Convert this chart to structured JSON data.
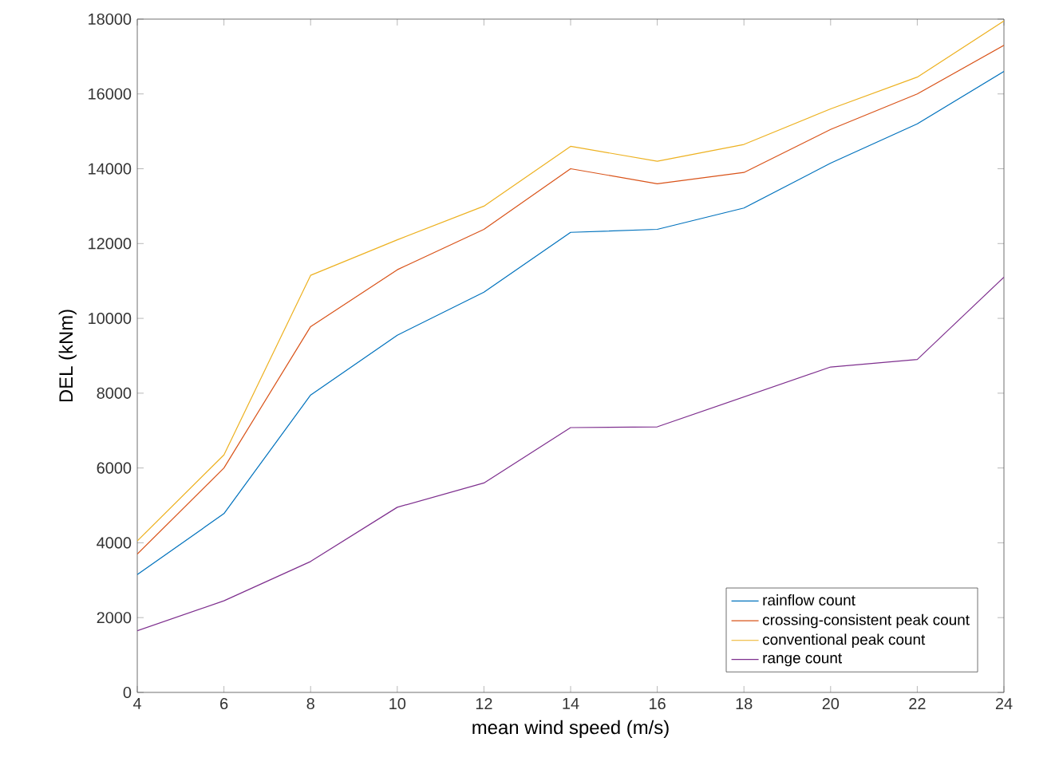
{
  "chart_data": {
    "type": "line",
    "xlabel": "mean wind speed (m/s)",
    "ylabel": "DEL (kNm)",
    "x": [
      4,
      6,
      8,
      10,
      12,
      14,
      16,
      18,
      20,
      22,
      24
    ],
    "series": [
      {
        "name": "rainflow count",
        "color": "#0072bd",
        "values": [
          3150,
          4780,
          7950,
          9550,
          10700,
          12300,
          12380,
          12950,
          14150,
          15200,
          16600
        ]
      },
      {
        "name": "crossing-consistent peak count",
        "color": "#d95319",
        "values": [
          3700,
          6000,
          9780,
          11300,
          12380,
          14000,
          13600,
          13900,
          15050,
          16000,
          17300
        ]
      },
      {
        "name": "conventional peak count",
        "color": "#edb120",
        "values": [
          4050,
          6350,
          11150,
          12100,
          13000,
          14600,
          14200,
          14650,
          15600,
          16450,
          17950
        ]
      },
      {
        "name": "range count",
        "color": "#7e2f8e",
        "values": [
          1650,
          2450,
          3500,
          4950,
          5600,
          7080,
          7100,
          7900,
          8700,
          8900,
          11100
        ]
      }
    ],
    "xlim": [
      4,
      24
    ],
    "xticks": [
      4,
      6,
      8,
      10,
      12,
      14,
      16,
      18,
      20,
      22,
      24
    ],
    "ylim": [
      0,
      18000
    ],
    "yticks": [
      0,
      2000,
      4000,
      6000,
      8000,
      10000,
      12000,
      14000,
      16000,
      18000
    ],
    "legend": "bottom right",
    "grid": false,
    "marker": "none",
    "line_style": "solid"
  }
}
